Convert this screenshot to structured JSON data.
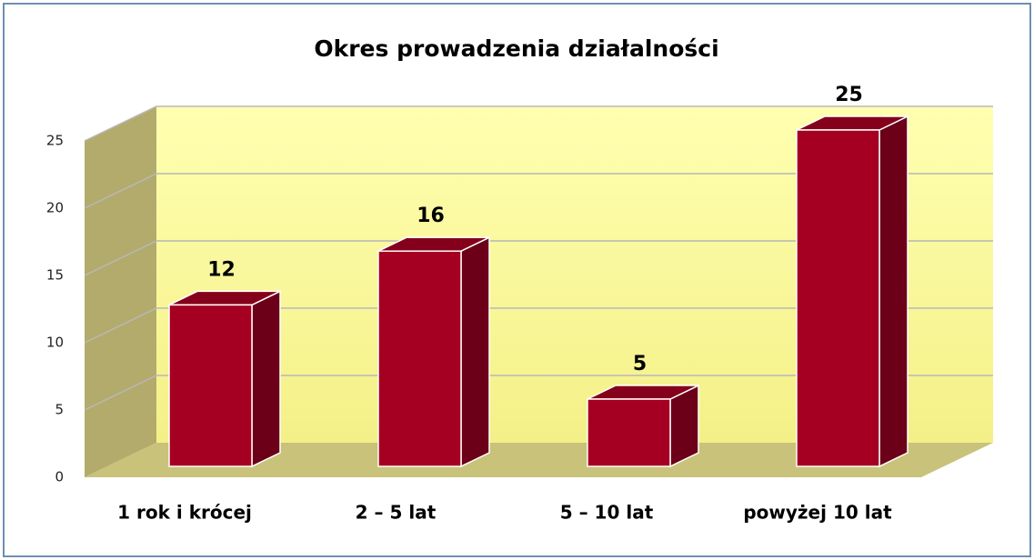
{
  "chart_data": {
    "type": "bar3d",
    "title": "Okres prowadzenia działalności",
    "categories": [
      "1 rok i krócej",
      "2 – 5 lat",
      "5 – 10 lat",
      "powyżej 10 lat"
    ],
    "values": [
      12,
      16,
      5,
      25
    ],
    "color": "#a50021",
    "ylim": [
      0,
      25
    ],
    "yticks": [
      0,
      5,
      10,
      15,
      20,
      25
    ],
    "grid": true
  }
}
